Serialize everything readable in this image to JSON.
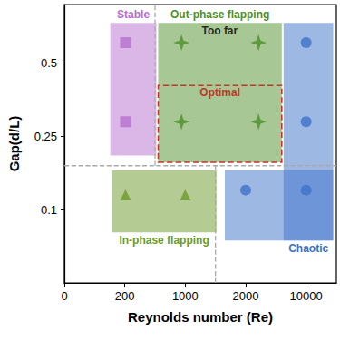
{
  "chart_data": {
    "type": "scatter",
    "x_label": "Reynolds number (Re)",
    "y_label": "Gap(d/L)",
    "xlim": [
      0,
      14000
    ],
    "xticks": [
      0,
      200,
      1000,
      2000,
      10000
    ],
    "ylim": [
      0,
      0.7
    ],
    "yticks": [
      0.1,
      0.25,
      0.5
    ],
    "grid": false,
    "series": [
      {
        "name": "Stable",
        "color": "#b56fd0",
        "marker": "square",
        "x": [
          210,
          210
        ],
        "y": [
          0.57,
          0.3
        ],
        "regions": [
          {
            "x": [
              152,
              618
            ],
            "y": [
              0.211,
              0.637
            ]
          }
        ]
      },
      {
        "name": "Out-phase flapping",
        "color": "#4f8f2a",
        "marker": "star",
        "x": [
          950,
          3700,
          950,
          3700
        ],
        "y": [
          0.57,
          0.57,
          0.3,
          0.3
        ],
        "regions": [
          {
            "x": [
              642,
              6776
            ],
            "y": [
              0.197,
              0.637
            ]
          }
        ]
      },
      {
        "name": "Optimal",
        "color": "#c0392b",
        "line_style": "dashed",
        "regions": [
          {
            "x": [
              642,
              6776
            ],
            "y": [
              0.197,
              0.424
            ]
          }
        ]
      },
      {
        "name": "In-phase flapping",
        "color": "#6a9a2a",
        "marker": "triangle",
        "x": [
          210,
          1000
        ],
        "y": [
          0.13,
          0.13
        ],
        "regions": [
          {
            "x": [
              157,
              1517
            ],
            "y": [
              0.069,
              0.18
            ]
          }
        ]
      },
      {
        "name": "Chaotic",
        "color": "#3d72c9",
        "marker": "circle",
        "x": [
          2000,
          10000,
          10000,
          10000
        ],
        "y": [
          0.14,
          0.14,
          0.3,
          0.57
        ],
        "regions": [
          {
            "x": [
              7015,
              13582
            ],
            "y": [
              0.058,
              0.637
            ]
          },
          {
            "x": [
              1655,
              13582
            ],
            "y": [
              0.058,
              0.18
            ]
          }
        ]
      }
    ],
    "annotations": [
      {
        "text": "Too far",
        "x": 1570,
        "y": 0.61
      }
    ],
    "boundaries": [
      {
        "x": [
          0,
          14000
        ],
        "y": [
          0.19,
          0.19
        ]
      },
      {
        "x": [
          600,
          600
        ],
        "y": [
          0.19,
          0.7
        ]
      },
      {
        "x": [
          1500,
          1500
        ],
        "y": [
          0,
          0.19
        ]
      }
    ]
  }
}
